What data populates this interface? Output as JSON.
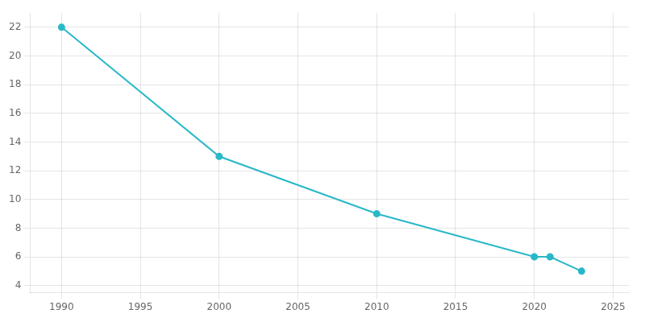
{
  "chart_data": {
    "type": "line",
    "x": [
      1990,
      2000,
      2010,
      2020,
      2021,
      2023
    ],
    "values": [
      22,
      13,
      9,
      6,
      6,
      5
    ],
    "color": "#29b8c8",
    "marker": "circle",
    "xlim": [
      1988,
      2026
    ],
    "ylim": [
      3.5,
      23
    ],
    "xticks": [
      1990,
      1995,
      2000,
      2005,
      2010,
      2015,
      2020,
      2025
    ],
    "yticks": [
      4,
      6,
      8,
      10,
      12,
      14,
      16,
      18,
      20,
      22
    ],
    "grid": true
  }
}
